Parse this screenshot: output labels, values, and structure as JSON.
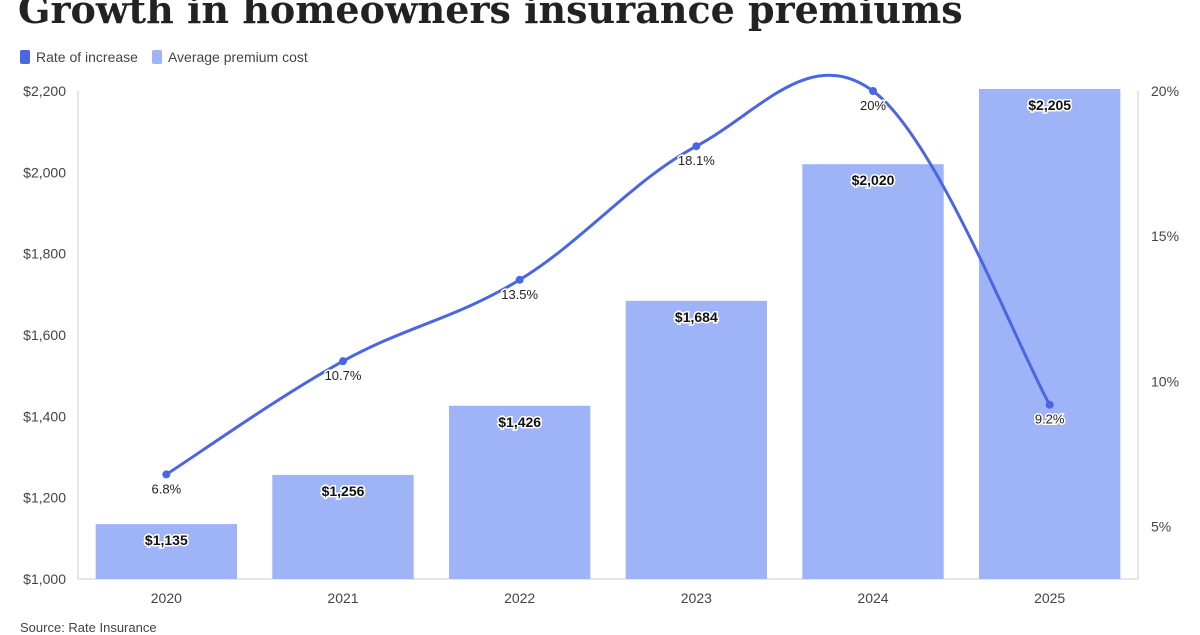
{
  "chart_data": {
    "type": "bar",
    "title": "Growth in homeowners insurance premiums",
    "source": "Source: Rate Insurance",
    "legend_position": "top-left",
    "categories": [
      "2020",
      "2021",
      "2022",
      "2023",
      "2024",
      "2025"
    ],
    "series": [
      {
        "name": "Average premium cost",
        "type": "bar",
        "axis": "left",
        "color": "#9fb3f7",
        "values": [
          1135,
          1256,
          1426,
          1684,
          2020,
          2205
        ],
        "labels": [
          "$1,135",
          "$1,256",
          "$1,426",
          "$1,684",
          "$2,020",
          "$2,205"
        ]
      },
      {
        "name": "Rate of increase",
        "type": "line",
        "axis": "right",
        "color": "#4a66e3",
        "values": [
          6.8,
          10.7,
          13.5,
          18.1,
          20,
          9.2
        ],
        "labels": [
          "6.8%",
          "10.7%",
          "13.5%",
          "18.1%",
          "20%",
          "9.2%"
        ]
      }
    ],
    "ylim": [
      1000,
      2200
    ],
    "y_ticks": [
      1000,
      1200,
      1400,
      1600,
      1800,
      2000,
      2200
    ],
    "y_tick_labels": [
      "$1,000",
      "$1,200",
      "$1,400",
      "$1,600",
      "$1,800",
      "$2,000",
      "$2,200"
    ],
    "y2lim": [
      3.2,
      20
    ],
    "y2_ticks": [
      5,
      10,
      15,
      20
    ],
    "y2_tick_labels": [
      "5%",
      "10%",
      "15%",
      "20%"
    ],
    "grid": false
  }
}
